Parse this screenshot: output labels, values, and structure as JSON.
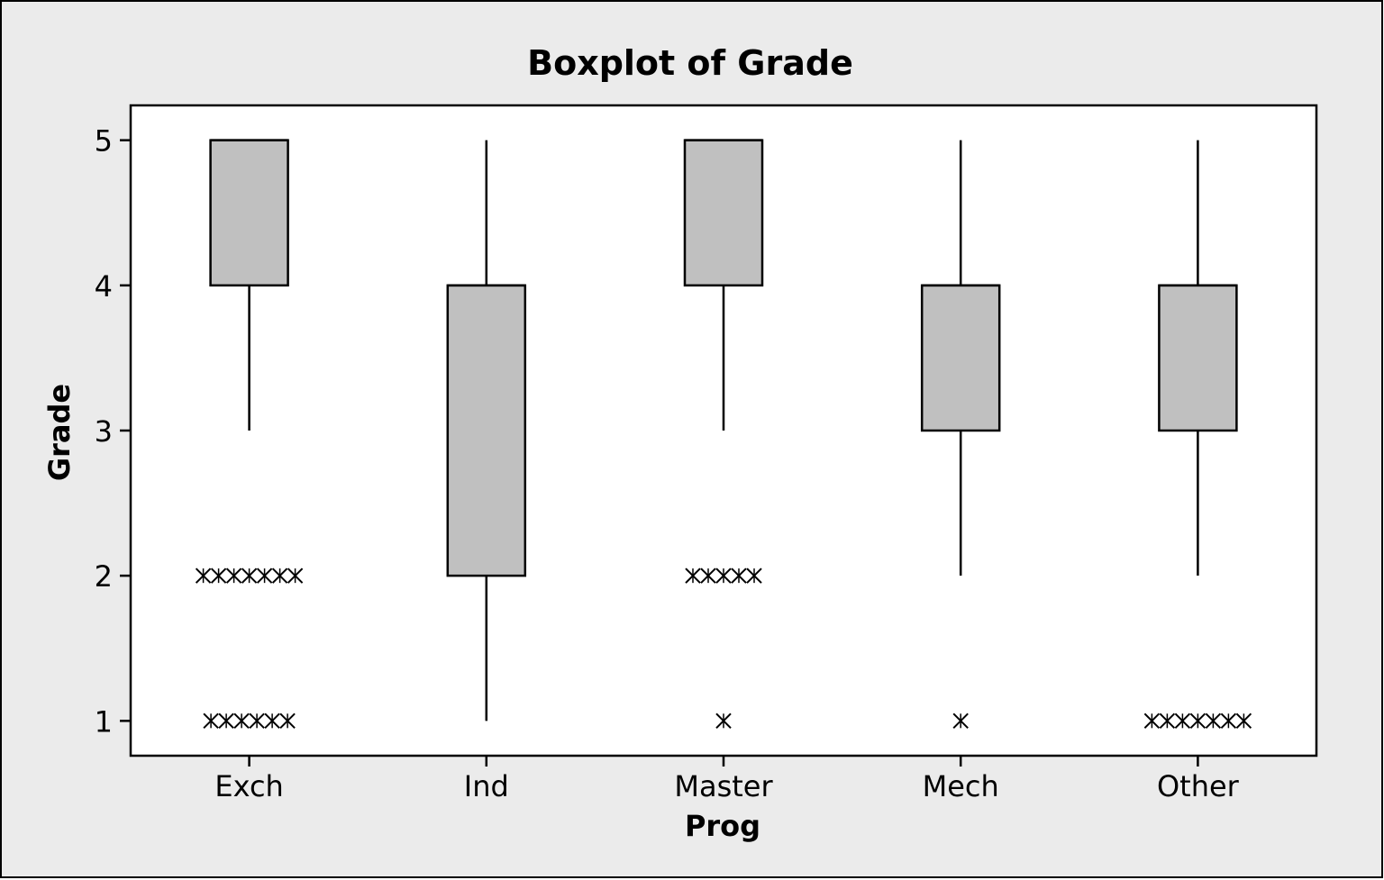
{
  "chart_data": {
    "type": "boxplot",
    "title": "Boxplot of Grade",
    "xlabel": "Prog",
    "ylabel": "Grade",
    "categories": [
      "Exch",
      "Ind",
      "Master",
      "Mech",
      "Other"
    ],
    "ylim": [
      0.76,
      5.24
    ],
    "yticks": [
      1,
      2,
      3,
      4,
      5
    ],
    "grid": false,
    "colors": {
      "box_fill": "#c0c0c0",
      "frame_background": "#ebebeb",
      "plot_background": "#ffffff",
      "stroke": "#000000"
    },
    "boxes": [
      {
        "category": "Exch",
        "whisker_low": 3,
        "q1": 4,
        "median": 5,
        "q3": 5,
        "whisker_high": 5,
        "outliers": [
          {
            "y": 2,
            "count": 7
          },
          {
            "y": 1,
            "count": 6
          }
        ]
      },
      {
        "category": "Ind",
        "whisker_low": 1,
        "q1": 2,
        "median": 4,
        "q3": 4,
        "whisker_high": 5,
        "outliers": []
      },
      {
        "category": "Master",
        "whisker_low": 3,
        "q1": 4,
        "median": 5,
        "q3": 5,
        "whisker_high": 5,
        "outliers": [
          {
            "y": 2,
            "count": 5
          },
          {
            "y": 1,
            "count": 1
          }
        ]
      },
      {
        "category": "Mech",
        "whisker_low": 2,
        "q1": 3,
        "median": 4,
        "q3": 4,
        "whisker_high": 5,
        "outliers": [
          {
            "y": 1,
            "count": 1
          }
        ]
      },
      {
        "category": "Other",
        "whisker_low": 2,
        "q1": 3,
        "median": 4,
        "q3": 4,
        "whisker_high": 5,
        "outliers": [
          {
            "y": 1,
            "count": 7
          }
        ]
      }
    ]
  }
}
